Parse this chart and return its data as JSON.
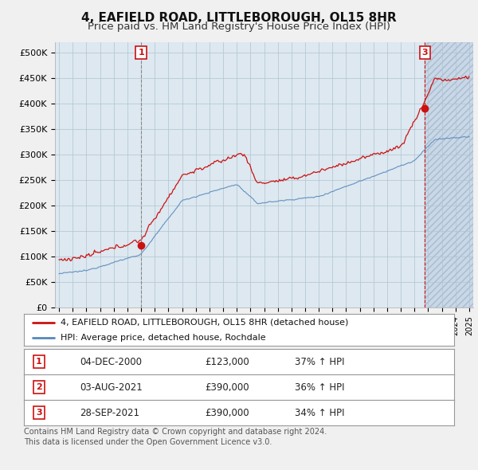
{
  "title": "4, EAFIELD ROAD, LITTLEBOROUGH, OL15 8HR",
  "subtitle": "Price paid vs. HM Land Registry's House Price Index (HPI)",
  "title_fontsize": 11,
  "subtitle_fontsize": 9.5,
  "bg_color": "#f0f0f0",
  "plot_bg_color": "#dde8f0",
  "hatch_bg_color": "#c8d8e8",
  "grid_color": "#b0c4d0",
  "red_color": "#cc1111",
  "blue_color": "#5588bb",
  "ylim": [
    0,
    520000
  ],
  "yticks": [
    0,
    50000,
    100000,
    150000,
    200000,
    250000,
    300000,
    350000,
    400000,
    450000,
    500000
  ],
  "ytick_labels": [
    "£0",
    "£50K",
    "£100K",
    "£150K",
    "£200K",
    "£250K",
    "£300K",
    "£350K",
    "£400K",
    "£450K",
    "£500K"
  ],
  "legend_line1": "4, EAFIELD ROAD, LITTLEBOROUGH, OL15 8HR (detached house)",
  "legend_line2": "HPI: Average price, detached house, Rochdale",
  "transactions": [
    {
      "label": "1",
      "date": "04-DEC-2000",
      "price": 123000,
      "hpi_pct": "37% ↑ HPI",
      "x_year": 2001.0
    },
    {
      "label": "2",
      "date": "03-AUG-2021",
      "price": 390000,
      "hpi_pct": "36% ↑ HPI",
      "x_year": 2021.58
    },
    {
      "label": "3",
      "date": "28-SEP-2021",
      "price": 390000,
      "hpi_pct": "34% ↑ HPI",
      "x_year": 2021.75
    }
  ],
  "table_rows": [
    [
      "1",
      "04-DEC-2000",
      "£123,000",
      "37% ↑ HPI"
    ],
    [
      "2",
      "03-AUG-2021",
      "£390,000",
      "36% ↑ HPI"
    ],
    [
      "3",
      "28-SEP-2021",
      "£390,000",
      "34% ↑ HPI"
    ]
  ],
  "footnote1": "Contains HM Land Registry data © Crown copyright and database right 2024.",
  "footnote2": "This data is licensed under the Open Government Licence v3.0.",
  "xmin": 1994.7,
  "xmax": 2025.3,
  "hatch_start": 2021.75
}
